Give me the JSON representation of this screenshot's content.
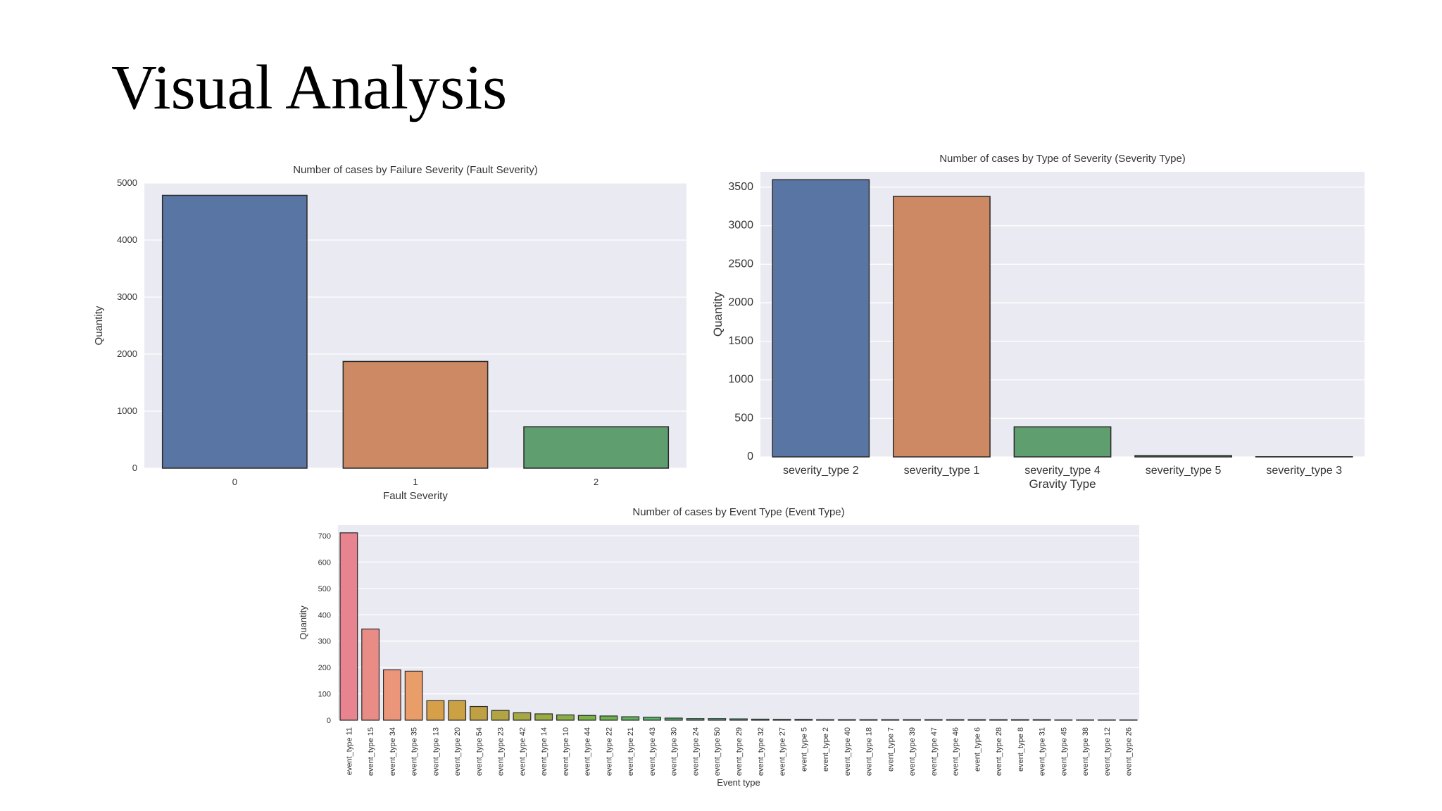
{
  "slide": {
    "title": "Visual Analysis"
  },
  "chart_data": [
    {
      "type": "bar",
      "title": "Number of cases by Failure Severity (Fault Severity)",
      "xlabel": "Fault Severity",
      "ylabel": "Quantity",
      "categories": [
        "0",
        "1",
        "2"
      ],
      "values": [
        4784,
        1871,
        726
      ],
      "ylim": [
        0,
        5000
      ],
      "yticks": [
        0,
        1000,
        2000,
        3000,
        4000,
        5000
      ],
      "colors": [
        "#5875a4",
        "#cc8963",
        "#5f9e6e"
      ],
      "grid": true
    },
    {
      "type": "bar",
      "title": "Number of cases by Type of Severity (Severity Type)",
      "xlabel": "Gravity Type",
      "ylabel": "Quantity",
      "categories": [
        "severity_type 2",
        "severity_type 1",
        "severity_type 4",
        "severity_type 5",
        "severity_type 3"
      ],
      "values": [
        3597,
        3380,
        390,
        16,
        2
      ],
      "ylim": [
        0,
        3700
      ],
      "yticks": [
        0,
        500,
        1000,
        1500,
        2000,
        2500,
        3000,
        3500
      ],
      "colors": [
        "#5875a4",
        "#cc8963",
        "#5f9e6e",
        "#5f9e6e",
        "#b55d60"
      ],
      "grid": true
    },
    {
      "type": "bar",
      "title": "Number of cases by Event Type (Event Type)",
      "xlabel": "Event type",
      "ylabel": "Quantity",
      "categories": [
        "event_type 11",
        "event_type 15",
        "event_type 34",
        "event_type 35",
        "event_type 13",
        "event_type 20",
        "event_type 54",
        "event_type 23",
        "event_type 42",
        "event_type 14",
        "event_type 10",
        "event_type 44",
        "event_type 22",
        "event_type 21",
        "event_type 43",
        "event_type 30",
        "event_type 24",
        "event_type 50",
        "event_type 29",
        "event_type 32",
        "event_type 27",
        "event_type 5",
        "event_type 2",
        "event_type 40",
        "event_type 18",
        "event_type 7",
        "event_type 39",
        "event_type 47",
        "event_type 46",
        "event_type 6",
        "event_type 28",
        "event_type 8",
        "event_type 31",
        "event_type 45",
        "event_type 38",
        "event_type 12",
        "event_type 26"
      ],
      "values": [
        711,
        346,
        191,
        186,
        74,
        74,
        52,
        37,
        28,
        24,
        20,
        18,
        16,
        13,
        11,
        8,
        6,
        6,
        5,
        4,
        3,
        3,
        2,
        2,
        2,
        2,
        2,
        2,
        2,
        2,
        2,
        2,
        2,
        1,
        1,
        1,
        1
      ],
      "ylim": [
        0,
        740
      ],
      "yticks": [
        0,
        100,
        200,
        300,
        400,
        500,
        600,
        700
      ],
      "colors": [
        "#e8848f",
        "#ea8c86",
        "#eb967a",
        "#e99e6a",
        "#d7a048",
        "#cba144",
        "#bfa143",
        "#b3a443",
        "#a6a842",
        "#99ab42",
        "#8aae43",
        "#7ab145",
        "#6cb34d",
        "#5fb55a",
        "#57b465",
        "#54b56f",
        "#52b67a",
        "#52b884",
        "#53b88f",
        "#54b99b",
        "#57b9a8",
        "#59b9b4",
        "#5cb8c0",
        "#5fb6ca",
        "#64b3d4",
        "#6bb0dd",
        "#77ace7",
        "#89a7ee",
        "#9aa1f1",
        "#ab9bf2",
        "#bc94f0",
        "#cc8ded",
        "#d986e6",
        "#e483dd",
        "#ea82d0",
        "#ed84c3",
        "#ee85b5"
      ],
      "grid": true
    }
  ]
}
